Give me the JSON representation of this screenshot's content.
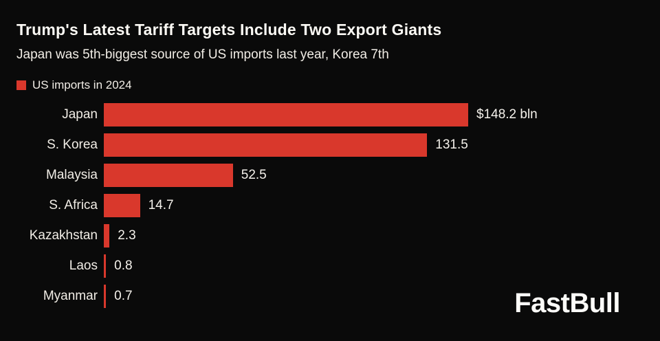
{
  "header": {
    "title": "Trump's Latest Tariff Targets Include Two Export Giants",
    "subtitle": "Japan was 5th-biggest source of US imports last year, Korea 7th"
  },
  "legend": {
    "label": "US imports in 2024"
  },
  "brand": {
    "logo_text": "FastBull"
  },
  "colors": {
    "background": "#0a0a0a",
    "bar": "#d9382c",
    "text": "#f5f2ec"
  },
  "chart_data": {
    "type": "bar",
    "orientation": "horizontal",
    "title": "Trump's Latest Tariff Targets Include Two Export Giants",
    "subtitle": "Japan was 5th-biggest source of US imports last year, Korea 7th",
    "series_name": "US imports in 2024",
    "categories": [
      "Japan",
      "S. Korea",
      "Malaysia",
      "S. Africa",
      "Kazakhstan",
      "Laos",
      "Myanmar"
    ],
    "values": [
      148.2,
      131.5,
      52.5,
      14.7,
      2.3,
      0.8,
      0.7
    ],
    "value_labels": [
      "$148.2 bln",
      "131.5",
      "52.5",
      "14.7",
      "2.3",
      "0.8",
      "0.7"
    ],
    "xlim": [
      0,
      148.2
    ],
    "grid": false,
    "legend_position": "top-left"
  }
}
